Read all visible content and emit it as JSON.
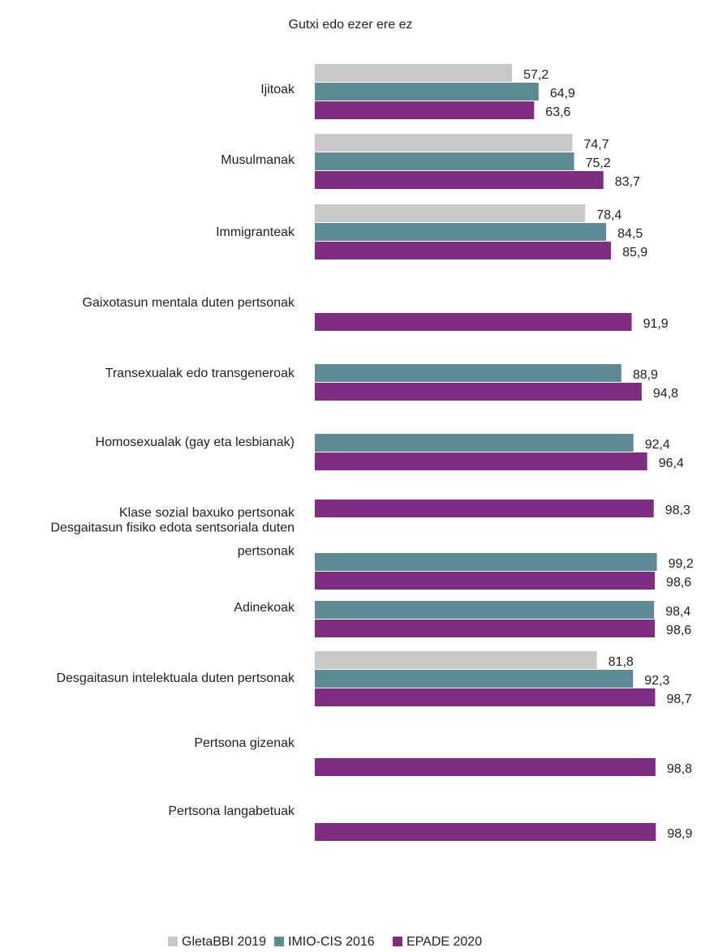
{
  "chart_data": {
    "type": "bar",
    "orientation": "horizontal",
    "title": "Gutxi edo ezer ere ez",
    "categories": [
      "Ijitoak",
      "Musulmanak",
      "Immigranteak",
      "Gaixotasun mentala duten pertsonak",
      "Transexualak edo transgeneroak",
      "Homosexualak (gay eta lesbianak)",
      "Klase sozial baxuko pertsonak",
      "Desgaitasun fisiko edota sentsoriala duten pertsonak",
      "Adinekoak",
      "Desgaitasun intelektuala duten pertsonak",
      "Pertsona gizenak",
      "Pertsona langabetuak"
    ],
    "xlim": [
      0,
      100
    ],
    "legend": "bottom",
    "series": [
      {
        "name": "GletaBBI 2019",
        "color": "#c8c8c9",
        "label_color": "#a9a9a9",
        "values": [
          57.2,
          74.7,
          78.4,
          null,
          null,
          null,
          null,
          null,
          null,
          81.8,
          null,
          null
        ],
        "value_labels": [
          "57,2",
          "74,7",
          "78,4",
          null,
          null,
          null,
          null,
          null,
          null,
          "81,8",
          null,
          null
        ]
      },
      {
        "name": "IMIO-CIS 2016",
        "color": "#5d8a93",
        "label_color": "#1f7c82",
        "values": [
          64.9,
          75.2,
          84.5,
          null,
          88.9,
          92.4,
          null,
          99.2,
          98.4,
          92.3,
          null,
          null
        ],
        "value_labels": [
          "64,9",
          "75,2",
          "84,5",
          null,
          "88,9",
          "92,4",
          null,
          "99,2",
          "98,4",
          "92,3",
          null,
          null
        ]
      },
      {
        "name": "EPADE 2020",
        "color": "#7f2d83",
        "label_color": "#7f2d83",
        "values": [
          63.6,
          83.7,
          85.9,
          91.9,
          94.8,
          96.4,
          98.3,
          98.6,
          98.6,
          98.7,
          98.8,
          98.9
        ],
        "value_labels": [
          "63,6",
          "83,7",
          "85,9",
          "91,9",
          "94,8",
          "96,4",
          "98,3",
          "98,6",
          "98,6",
          "98,7",
          "98,8",
          "98,9"
        ]
      }
    ]
  }
}
